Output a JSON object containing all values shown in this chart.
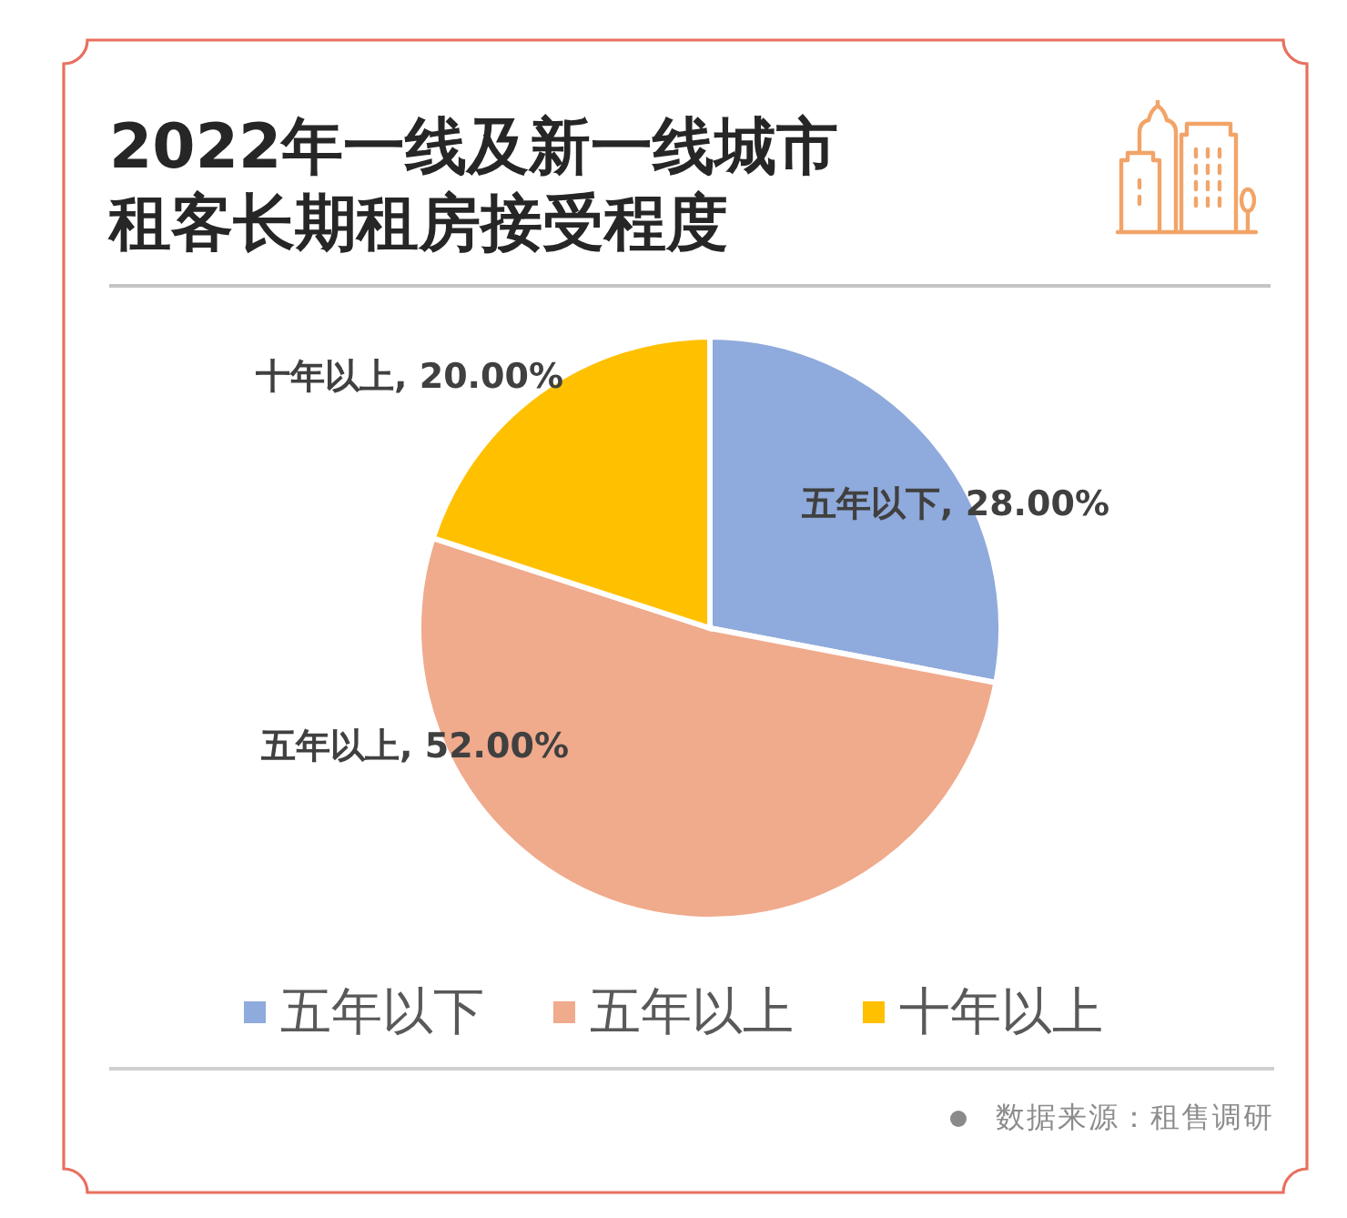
{
  "chart_data": {
    "type": "pie",
    "title": "2022年一线及新一线城市租客长期租房接受程度",
    "categories": [
      "五年以下",
      "五年以上",
      "十年以上"
    ],
    "values": [
      28,
      52,
      20
    ],
    "colors": [
      "#8faadc",
      "#f0aa8c",
      "#ffc000"
    ],
    "value_labels": [
      "五年以下, 28.00%",
      "五年以上, 52.00%",
      "十年以上, 20.00%"
    ],
    "legend": "bottom",
    "annotations": [
      "数据来源：租售调研"
    ]
  }
}
